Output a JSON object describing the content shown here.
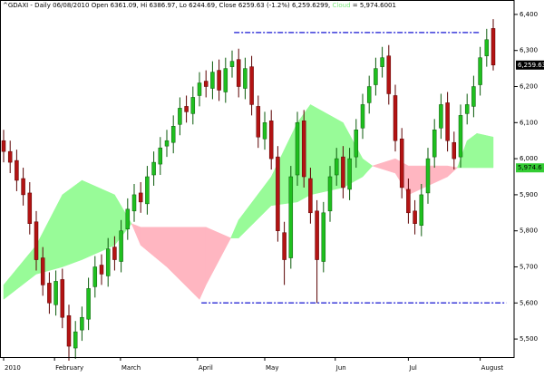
{
  "chart_data": {
    "type": "candlestick",
    "title": "^GDAXI - Daily 06/08/2010 Open 6361.09, Hi 6386.97, Lo 6244.69, Close 6259.63 (-1.2%) 6,259.6299,",
    "cloud_name": "Cloud",
    "cloud_value_label": "= 5,974.6001",
    "up_color": "#1fbf1f",
    "down_color": "#b31313",
    "open": [
      6050,
      6020,
      5995,
      5945,
      5905,
      5825,
      5725,
      5655,
      5595,
      5665,
      5565,
      5475,
      5525,
      5555,
      5645,
      5705,
      5675,
      5755,
      5715,
      5805,
      5855,
      5905,
      5875,
      5955,
      5985,
      6035,
      6045,
      6095,
      6145,
      6125,
      6175,
      6215,
      6195,
      6245,
      6185,
      6255,
      6275,
      6195,
      6255,
      6145,
      6055,
      6105,
      6005,
      5795,
      5725,
      5955,
      6105,
      5945,
      5855,
      5715,
      5855,
      5955,
      6005,
      5915,
      6005,
      6085,
      6155,
      6205,
      6255,
      6285,
      6175,
      6055,
      5915,
      5855,
      5815,
      5905,
      6005,
      6085,
      6155,
      6045,
      6005,
      6125,
      6145,
      6205,
      6285,
      6361.09
    ],
    "high": [
      6080,
      6050,
      6025,
      5975,
      5935,
      5855,
      5755,
      5685,
      5690,
      5695,
      5595,
      5550,
      5590,
      5670,
      5730,
      5735,
      5780,
      5785,
      5830,
      5890,
      5930,
      5935,
      5980,
      6020,
      6060,
      6080,
      6120,
      6170,
      6175,
      6200,
      6240,
      6245,
      6270,
      6275,
      6280,
      6300,
      6305,
      6280,
      6285,
      6175,
      6130,
      6135,
      6035,
      5825,
      5980,
      6130,
      6135,
      5975,
      5885,
      5880,
      5980,
      6030,
      6035,
      6030,
      6110,
      6180,
      6230,
      6280,
      6310,
      6315,
      6205,
      6085,
      5945,
      5885,
      5930,
      6030,
      6110,
      6180,
      6185,
      6075,
      6150,
      6180,
      6230,
      6310,
      6360,
      6386.97
    ],
    "low": [
      5990,
      5960,
      5910,
      5870,
      5790,
      5690,
      5620,
      5570,
      5565,
      5530,
      5440,
      5445,
      5495,
      5525,
      5615,
      5650,
      5645,
      5690,
      5685,
      5775,
      5825,
      5850,
      5845,
      5925,
      5955,
      6005,
      6015,
      6065,
      6100,
      6095,
      6145,
      6170,
      6165,
      6160,
      6155,
      6225,
      6170,
      6165,
      6120,
      6030,
      6025,
      5970,
      5770,
      5650,
      5695,
      5925,
      5920,
      5820,
      5600,
      5685,
      5825,
      5925,
      5890,
      5885,
      5975,
      6055,
      6125,
      6175,
      6225,
      6150,
      6020,
      5890,
      5820,
      5790,
      5785,
      5875,
      5975,
      6055,
      6020,
      5970,
      5975,
      6095,
      6115,
      6175,
      6255,
      6244.69
    ],
    "close": [
      6020,
      5990,
      5940,
      5900,
      5820,
      5720,
      5650,
      5600,
      5660,
      5560,
      5480,
      5520,
      5560,
      5640,
      5700,
      5680,
      5750,
      5720,
      5800,
      5860,
      5900,
      5880,
      5950,
      5990,
      6030,
      6050,
      6090,
      6140,
      6130,
      6170,
      6210,
      6200,
      6240,
      6190,
      6250,
      6270,
      6200,
      6250,
      6150,
      6060,
      6100,
      6000,
      5800,
      5720,
      5950,
      6100,
      5950,
      5850,
      5720,
      5850,
      5950,
      6000,
      5920,
      6000,
      6080,
      6150,
      6200,
      6250,
      6280,
      6180,
      6050,
      5920,
      5850,
      5820,
      5900,
      6000,
      6080,
      6150,
      6050,
      6000,
      6120,
      6150,
      6200,
      6280,
      6330,
      6259.63
    ],
    "ylim": [
      5450,
      6440
    ],
    "yticks": [
      {
        "value": 6400,
        "label": "6,400"
      },
      {
        "value": 6300,
        "label": "6,300"
      },
      {
        "value": 6200,
        "label": "6,200"
      },
      {
        "value": 6100,
        "label": "6,100"
      },
      {
        "value": 6000,
        "label": "6,000"
      },
      {
        "value": 5900,
        "label": "5,900"
      },
      {
        "value": 5800,
        "label": "5,800"
      },
      {
        "value": 5700,
        "label": "5,700"
      },
      {
        "value": 5600,
        "label": "5,600"
      },
      {
        "value": 5500,
        "label": "5,500"
      }
    ],
    "x_ticks": [
      {
        "value": 0,
        "label": "2010"
      },
      {
        "value": 7.8,
        "label": "February"
      },
      {
        "value": 17.9,
        "label": "March"
      },
      {
        "value": 29.7,
        "label": "April"
      },
      {
        "value": 40,
        "label": "May"
      },
      {
        "value": 50.8,
        "label": "Jun"
      },
      {
        "value": 62,
        "label": "Jul"
      },
      {
        "value": 73,
        "label": "August"
      }
    ],
    "cloud": {
      "bull_color": "#98fb98",
      "bear_color": "#ffb6c1",
      "index": [
        0,
        5,
        9,
        12,
        17,
        19.6,
        21,
        25,
        30,
        31,
        34.8,
        36,
        41,
        45,
        47,
        52,
        55,
        56.5,
        60,
        62,
        68,
        69.5,
        71,
        72.5,
        75
      ],
      "span_a": [
        5650,
        5760,
        5900,
        5940,
        5900,
        5820,
        5760,
        5700,
        5610,
        5650,
        5780,
        5830,
        5950,
        6100,
        6150,
        6100,
        6000,
        5980,
        5960,
        5900,
        5950,
        5975,
        6050,
        6070,
        6060
      ],
      "span_b": [
        5610,
        5680,
        5700,
        5720,
        5760,
        5820,
        5810,
        5810,
        5810,
        5810,
        5780,
        5780,
        5870,
        5880,
        5900,
        5920,
        5950,
        5980,
        6000,
        5980,
        5980,
        5975,
        5975,
        5975,
        5975
      ]
    },
    "levels": [
      {
        "value": 6350,
        "range": [
          35.3,
          73
        ],
        "color": "#3b3bd9"
      },
      {
        "value": 5600,
        "range": [
          30.3,
          77
        ],
        "color": "#3b3bd9"
      }
    ],
    "price_tags": [
      {
        "value": 6259.63,
        "label": "6,259.63",
        "color": "#000000",
        "text_color": "#ffffff"
      },
      {
        "value": 5974.6,
        "label": "5,974.6",
        "color": "#33cc33",
        "text_color": "#000000"
      }
    ]
  }
}
